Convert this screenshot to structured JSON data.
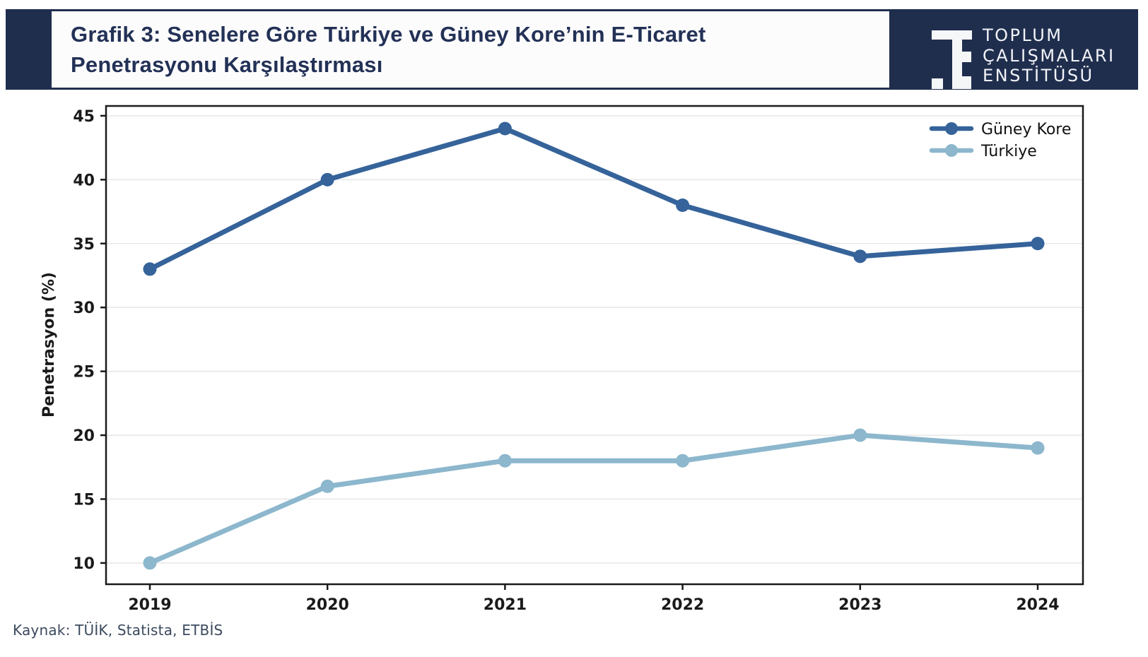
{
  "header": {
    "title_line1": "Grafik 3: Senelere Göre Türkiye ve Güney Kore’nin E-Ticaret",
    "title_line2": "Penetrasyonu Karşılaştırması",
    "background_color": "#202e4e",
    "title_color": "#233156",
    "logo": {
      "line1": "TOPLUM",
      "line2": "ÇALIŞMALARI",
      "line3": "ENSTİTÜSÜ"
    }
  },
  "chart_data": {
    "type": "line",
    "title": "Grafik 3: Senelere Göre Türkiye ve Güney Kore’nin E-Ticaret Penetrasyonu Karşılaştırması",
    "categories": [
      "2019",
      "2020",
      "2021",
      "2022",
      "2023",
      "2024"
    ],
    "series": [
      {
        "name": "Güney Kore",
        "color": "#35639a",
        "values": [
          33,
          40,
          44,
          38,
          34,
          35
        ]
      },
      {
        "name": "Türkiye",
        "color": "#8cb7cd",
        "values": [
          10,
          16,
          18,
          18,
          20,
          19
        ]
      }
    ],
    "xlabel": "",
    "ylabel": "Penetrasyon (%)",
    "yticks": [
      10,
      15,
      20,
      25,
      30,
      35,
      40,
      45
    ],
    "ylim": [
      8.3,
      46.8
    ],
    "grid": true,
    "legend_position": "upper right",
    "colors": {
      "axis": "#1a1a1a",
      "grid": "#e8e8e8"
    }
  },
  "source_note": "Kaynak: TÜİK, Statista, ETBİS"
}
